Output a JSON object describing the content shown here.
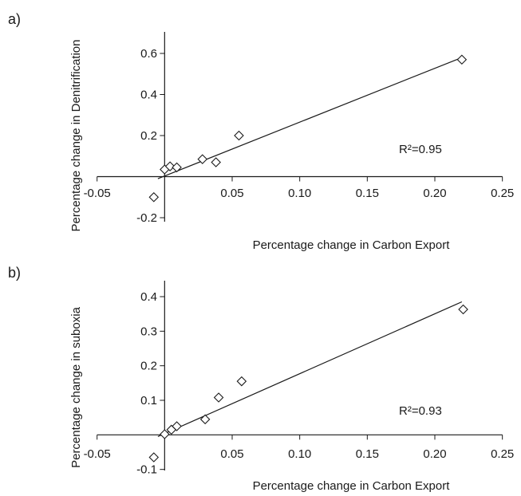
{
  "chart_data": [
    {
      "panel_label": "a)",
      "type": "scatter",
      "xlabel": "Percentage change in Carbon Export",
      "ylabel": "Percentage change in Denitrification",
      "xlim": [
        -0.05,
        0.25
      ],
      "ylim": [
        -0.2,
        0.7
      ],
      "x_ticks": [
        -0.05,
        0.05,
        0.1,
        0.15,
        0.2,
        0.25
      ],
      "x_tick_labels": [
        "-0.05",
        "0.05",
        "0.10",
        "0.15",
        "0.20",
        "0.25"
      ],
      "y_ticks": [
        -0.2,
        0.2,
        0.4,
        0.6
      ],
      "y_tick_labels": [
        "-0.2",
        "0.2",
        "0.4",
        "0.6"
      ],
      "points": [
        {
          "x": -0.008,
          "y": -0.1
        },
        {
          "x": 0.0,
          "y": 0.035
        },
        {
          "x": 0.004,
          "y": 0.05
        },
        {
          "x": 0.009,
          "y": 0.045
        },
        {
          "x": 0.028,
          "y": 0.085
        },
        {
          "x": 0.038,
          "y": 0.07
        },
        {
          "x": 0.055,
          "y": 0.2
        },
        {
          "x": 0.22,
          "y": 0.57
        }
      ],
      "fit_line": {
        "x": [
          -0.005,
          0.22
        ],
        "y": [
          -0.01,
          0.58
        ]
      },
      "r2_label": "R²=0.95",
      "grid": false,
      "marker": "open diamond"
    },
    {
      "panel_label": "b)",
      "type": "scatter",
      "xlabel": "Percentage change in Carbon Export",
      "ylabel": "Percentage change in suboxia",
      "xlim": [
        -0.05,
        0.25
      ],
      "ylim": [
        -0.1,
        0.45
      ],
      "x_ticks": [
        -0.05,
        0.05,
        0.1,
        0.15,
        0.2,
        0.25
      ],
      "x_tick_labels": [
        "-0.05",
        "0.05",
        "0.10",
        "0.15",
        "0.20",
        "0.25"
      ],
      "y_ticks": [
        -0.1,
        0.1,
        0.2,
        0.3,
        0.4
      ],
      "y_tick_labels": [
        "-0.1",
        "0.1",
        "0.2",
        "0.3",
        "0.4"
      ],
      "points": [
        {
          "x": -0.008,
          "y": -0.065
        },
        {
          "x": 0.0,
          "y": 0.002
        },
        {
          "x": 0.005,
          "y": 0.015
        },
        {
          "x": 0.009,
          "y": 0.025
        },
        {
          "x": 0.03,
          "y": 0.045
        },
        {
          "x": 0.04,
          "y": 0.108
        },
        {
          "x": 0.057,
          "y": 0.155
        },
        {
          "x": 0.221,
          "y": 0.363
        }
      ],
      "fit_line": {
        "x": [
          -0.005,
          0.22
        ],
        "y": [
          -0.005,
          0.385
        ]
      },
      "r2_label": "R²=0.93",
      "grid": false,
      "marker": "open diamond"
    }
  ]
}
